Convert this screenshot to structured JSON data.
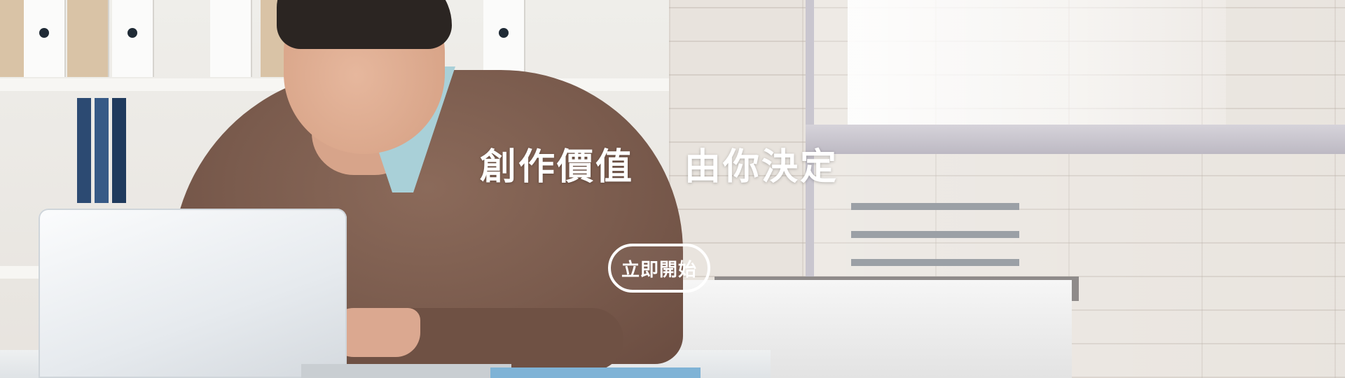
{
  "hero": {
    "headline_part1": "創作價值",
    "headline_part2": "由你決定",
    "cta_label": "立即開始"
  },
  "colors": {
    "text": "#ffffff",
    "sweater": "#7a5b4d",
    "background": "#e8e3dd"
  }
}
